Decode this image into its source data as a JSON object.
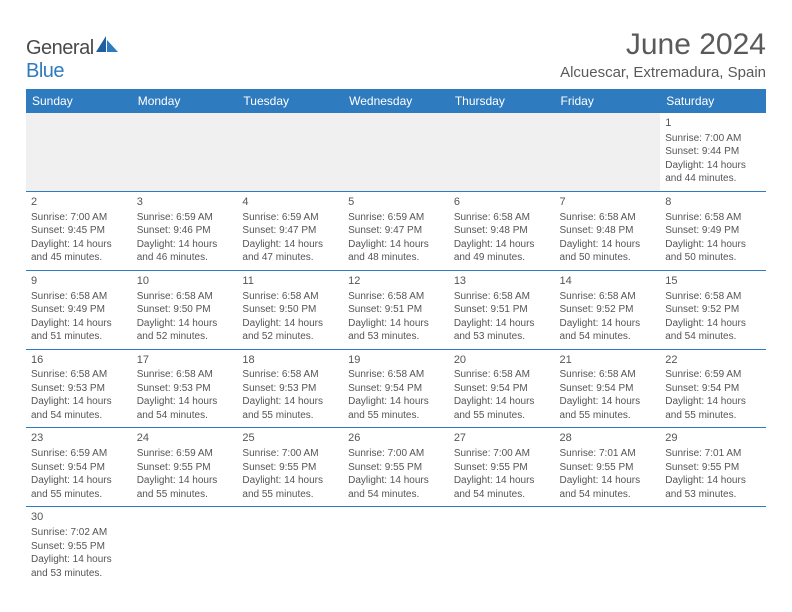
{
  "brand": {
    "name_a": "General",
    "name_b": "Blue"
  },
  "title": "June 2024",
  "location": "Alcuescar, Extremadura, Spain",
  "colors": {
    "header_bg": "#2f7bbf",
    "header_fg": "#ffffff",
    "rule": "#2f7bbf",
    "text": "#555555",
    "blank_bg": "#f0f0f0"
  },
  "day_headers": [
    "Sunday",
    "Monday",
    "Tuesday",
    "Wednesday",
    "Thursday",
    "Friday",
    "Saturday"
  ],
  "weeks": [
    [
      null,
      null,
      null,
      null,
      null,
      null,
      {
        "n": "1",
        "sr": "7:00 AM",
        "ss": "9:44 PM",
        "dl": "14 hours and 44 minutes."
      }
    ],
    [
      {
        "n": "2",
        "sr": "7:00 AM",
        "ss": "9:45 PM",
        "dl": "14 hours and 45 minutes."
      },
      {
        "n": "3",
        "sr": "6:59 AM",
        "ss": "9:46 PM",
        "dl": "14 hours and 46 minutes."
      },
      {
        "n": "4",
        "sr": "6:59 AM",
        "ss": "9:47 PM",
        "dl": "14 hours and 47 minutes."
      },
      {
        "n": "5",
        "sr": "6:59 AM",
        "ss": "9:47 PM",
        "dl": "14 hours and 48 minutes."
      },
      {
        "n": "6",
        "sr": "6:58 AM",
        "ss": "9:48 PM",
        "dl": "14 hours and 49 minutes."
      },
      {
        "n": "7",
        "sr": "6:58 AM",
        "ss": "9:48 PM",
        "dl": "14 hours and 50 minutes."
      },
      {
        "n": "8",
        "sr": "6:58 AM",
        "ss": "9:49 PM",
        "dl": "14 hours and 50 minutes."
      }
    ],
    [
      {
        "n": "9",
        "sr": "6:58 AM",
        "ss": "9:49 PM",
        "dl": "14 hours and 51 minutes."
      },
      {
        "n": "10",
        "sr": "6:58 AM",
        "ss": "9:50 PM",
        "dl": "14 hours and 52 minutes."
      },
      {
        "n": "11",
        "sr": "6:58 AM",
        "ss": "9:50 PM",
        "dl": "14 hours and 52 minutes."
      },
      {
        "n": "12",
        "sr": "6:58 AM",
        "ss": "9:51 PM",
        "dl": "14 hours and 53 minutes."
      },
      {
        "n": "13",
        "sr": "6:58 AM",
        "ss": "9:51 PM",
        "dl": "14 hours and 53 minutes."
      },
      {
        "n": "14",
        "sr": "6:58 AM",
        "ss": "9:52 PM",
        "dl": "14 hours and 54 minutes."
      },
      {
        "n": "15",
        "sr": "6:58 AM",
        "ss": "9:52 PM",
        "dl": "14 hours and 54 minutes."
      }
    ],
    [
      {
        "n": "16",
        "sr": "6:58 AM",
        "ss": "9:53 PM",
        "dl": "14 hours and 54 minutes."
      },
      {
        "n": "17",
        "sr": "6:58 AM",
        "ss": "9:53 PM",
        "dl": "14 hours and 54 minutes."
      },
      {
        "n": "18",
        "sr": "6:58 AM",
        "ss": "9:53 PM",
        "dl": "14 hours and 55 minutes."
      },
      {
        "n": "19",
        "sr": "6:58 AM",
        "ss": "9:54 PM",
        "dl": "14 hours and 55 minutes."
      },
      {
        "n": "20",
        "sr": "6:58 AM",
        "ss": "9:54 PM",
        "dl": "14 hours and 55 minutes."
      },
      {
        "n": "21",
        "sr": "6:58 AM",
        "ss": "9:54 PM",
        "dl": "14 hours and 55 minutes."
      },
      {
        "n": "22",
        "sr": "6:59 AM",
        "ss": "9:54 PM",
        "dl": "14 hours and 55 minutes."
      }
    ],
    [
      {
        "n": "23",
        "sr": "6:59 AM",
        "ss": "9:54 PM",
        "dl": "14 hours and 55 minutes."
      },
      {
        "n": "24",
        "sr": "6:59 AM",
        "ss": "9:55 PM",
        "dl": "14 hours and 55 minutes."
      },
      {
        "n": "25",
        "sr": "7:00 AM",
        "ss": "9:55 PM",
        "dl": "14 hours and 55 minutes."
      },
      {
        "n": "26",
        "sr": "7:00 AM",
        "ss": "9:55 PM",
        "dl": "14 hours and 54 minutes."
      },
      {
        "n": "27",
        "sr": "7:00 AM",
        "ss": "9:55 PM",
        "dl": "14 hours and 54 minutes."
      },
      {
        "n": "28",
        "sr": "7:01 AM",
        "ss": "9:55 PM",
        "dl": "14 hours and 54 minutes."
      },
      {
        "n": "29",
        "sr": "7:01 AM",
        "ss": "9:55 PM",
        "dl": "14 hours and 53 minutes."
      }
    ],
    [
      {
        "n": "30",
        "sr": "7:02 AM",
        "ss": "9:55 PM",
        "dl": "14 hours and 53 minutes."
      },
      null,
      null,
      null,
      null,
      null,
      null
    ]
  ],
  "labels": {
    "sunrise": "Sunrise: ",
    "sunset": "Sunset: ",
    "daylight": "Daylight: "
  }
}
